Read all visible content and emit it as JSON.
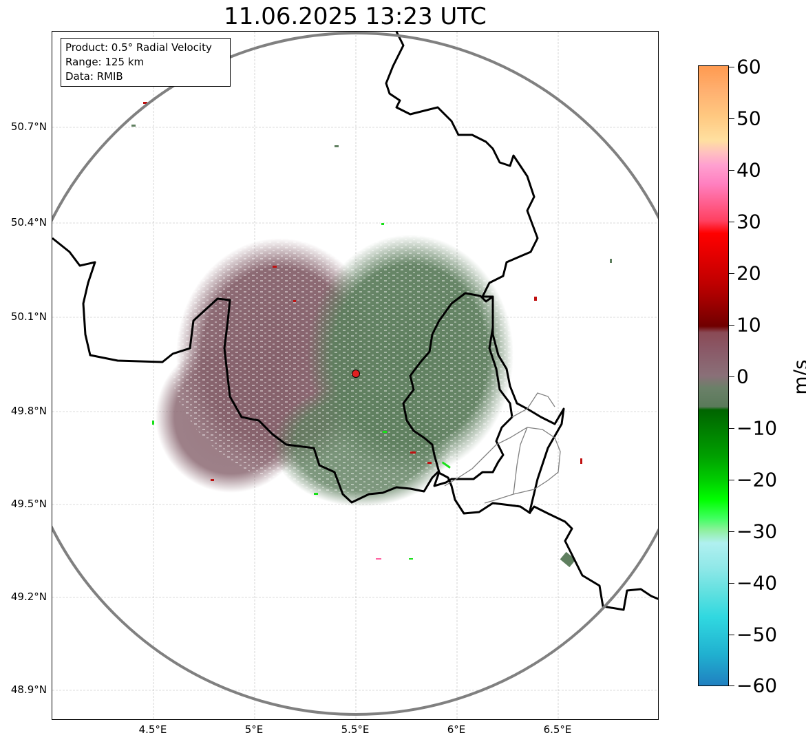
{
  "title": "11.06.2025 13:23 UTC",
  "info": {
    "product": "Product: 0.5° Radial Velocity",
    "range": "Range: 125 km",
    "data": "Data: RMIB"
  },
  "axes": {
    "lon_ticks": [
      "4.5°E",
      "5°E",
      "5.5°E",
      "6°E",
      "6.5°E"
    ],
    "lat_ticks": [
      "50.7°N",
      "50.4°N",
      "50.1°N",
      "49.8°N",
      "49.5°N",
      "49.2°N",
      "48.9°N"
    ]
  },
  "colorbar": {
    "unit": "m/s",
    "labels": [
      "60",
      "50",
      "40",
      "30",
      "20",
      "10",
      "0",
      "−10",
      "−20",
      "−30",
      "−40",
      "−50",
      "−60"
    ]
  },
  "colors": {
    "approaching_green": "#5f7f5f",
    "receding_mauve": "#8a5a6a",
    "strong_red": "#d40000",
    "strong_green": "#10e010",
    "range_ring": "#808080",
    "border": "#000000",
    "radar_site": "#e02020"
  }
}
